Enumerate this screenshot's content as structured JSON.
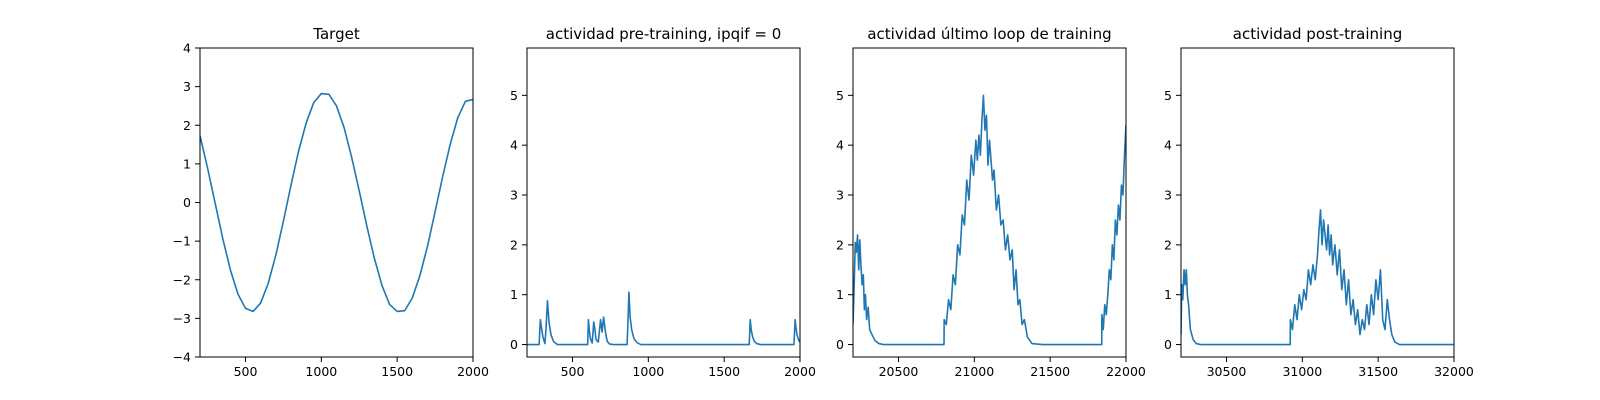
{
  "chart_data": [
    {
      "type": "line",
      "title": "Target",
      "xlim": [
        200,
        2000
      ],
      "ylim": [
        -4,
        4
      ],
      "xticks": [
        500,
        1000,
        1500,
        2000
      ],
      "xtick_labels": [
        "500",
        "1000",
        "1500",
        "2000"
      ],
      "yticks": [
        -4,
        -3,
        -2,
        -1,
        0,
        1,
        2,
        3,
        4
      ],
      "ytick_labels": [
        "−4",
        "−3",
        "−2",
        "−1",
        "0",
        "1",
        "2",
        "3",
        "4"
      ],
      "color": "#1f77b4",
      "series": [
        {
          "x": [
            200,
            250,
            300,
            350,
            400,
            450,
            500,
            550,
            600,
            650,
            700,
            750,
            800,
            850,
            900,
            950,
            1000,
            1050,
            1100,
            1150,
            1200,
            1250,
            1300,
            1350,
            1400,
            1450,
            1500,
            1550,
            1600,
            1650,
            1700,
            1750,
            1800,
            1850,
            1900,
            1950,
            2000
          ],
          "y": [
            1.73,
            0.89,
            -0.02,
            -0.93,
            -1.74,
            -2.37,
            -2.74,
            -2.82,
            -2.6,
            -2.09,
            -1.36,
            -0.48,
            0.45,
            1.33,
            2.06,
            2.59,
            2.82,
            2.8,
            2.5,
            1.94,
            1.17,
            0.3,
            -0.61,
            -1.45,
            -2.15,
            -2.64,
            -2.82,
            -2.8,
            -2.47,
            -1.89,
            -1.13,
            -0.24,
            0.67,
            1.51,
            2.2,
            2.62,
            2.67
          ]
        }
      ]
    },
    {
      "type": "line",
      "title": "actividad pre-training, ipqif = 0",
      "xlim": [
        200,
        2000
      ],
      "ylim": [
        -0.25,
        5.95
      ],
      "xticks": [
        500,
        1000,
        1500,
        2000
      ],
      "xtick_labels": [
        "500",
        "1000",
        "1500",
        "2000"
      ],
      "yticks": [
        0,
        1,
        2,
        3,
        4,
        5
      ],
      "ytick_labels": [
        "0",
        "1",
        "2",
        "3",
        "4",
        "5"
      ],
      "color": "#1f77b4",
      "series": [
        {
          "x": [
            200,
            280,
            288,
            295,
            305,
            318,
            325,
            335,
            345,
            358,
            375,
            400,
            600,
            605,
            610,
            618,
            630,
            640,
            648,
            655,
            670,
            685,
            695,
            705,
            715,
            723,
            730,
            745,
            770,
            860,
            866,
            872,
            880,
            890,
            905,
            925,
            950,
            1000,
            1665,
            1672,
            1678,
            1688,
            1700,
            1715,
            1740,
            1960,
            1968,
            1973,
            1980,
            1990,
            2000
          ],
          "y": [
            0,
            0,
            0.5,
            0.35,
            0.15,
            0.02,
            0.3,
            0.88,
            0.45,
            0.2,
            0.06,
            0,
            0,
            0.5,
            0.3,
            0.12,
            0.03,
            0.45,
            0.3,
            0.1,
            0.05,
            0.5,
            0.25,
            0.55,
            0.3,
            0.15,
            0.06,
            0.01,
            0,
            0,
            0.5,
            1.05,
            0.55,
            0.3,
            0.12,
            0.04,
            0,
            0,
            0,
            0.5,
            0.3,
            0.15,
            0.06,
            0.02,
            0,
            0,
            0.5,
            0.35,
            0.2,
            0.1,
            0.05
          ]
        }
      ]
    },
    {
      "type": "line",
      "title": "actividad último loop de training",
      "xlim": [
        20200,
        22000
      ],
      "ylim": [
        -0.25,
        5.95
      ],
      "xticks": [
        20500,
        21000,
        21500,
        22000
      ],
      "xtick_labels": [
        "20500",
        "21000",
        "21500",
        "22000"
      ],
      "yticks": [
        0,
        1,
        2,
        3,
        4,
        5
      ],
      "ytick_labels": [
        "0",
        "1",
        "2",
        "3",
        "4",
        "5"
      ],
      "color": "#1f77b4",
      "series": [
        {
          "x": [
            20200,
            20208,
            20215,
            20222,
            20230,
            20238,
            20245,
            20252,
            20260,
            20268,
            20275,
            20282,
            20290,
            20300,
            20310,
            20325,
            20345,
            20370,
            20400,
            20500,
            20700,
            20800,
            20801,
            20815,
            20830,
            20845,
            20860,
            20875,
            20890,
            20905,
            20920,
            20935,
            20950,
            20965,
            20980,
            20995,
            21010,
            21020,
            21030,
            21040,
            21050,
            21060,
            21070,
            21080,
            21090,
            21100,
            21110,
            21120,
            21130,
            21145,
            21160,
            21175,
            21190,
            21205,
            21220,
            21235,
            21250,
            21262,
            21275,
            21288,
            21300,
            21315,
            21330,
            21350,
            21380,
            21450,
            21840,
            21841,
            21850,
            21860,
            21870,
            21880,
            21890,
            21900,
            21910,
            21920,
            21930,
            21940,
            21950,
            21960,
            21970,
            21980,
            21990,
            22000
          ],
          "y": [
            0.4,
            1.2,
            2.05,
            1.85,
            2.2,
            1.5,
            2.1,
            1.6,
            1.2,
            1.4,
            0.7,
            1.0,
            0.5,
            0.75,
            0.3,
            0.2,
            0.08,
            0.02,
            0,
            0,
            0,
            0,
            0.5,
            0.4,
            0.9,
            0.7,
            1.4,
            1.2,
            2.0,
            1.8,
            2.6,
            2.4,
            3.3,
            2.9,
            3.8,
            3.4,
            4.1,
            3.7,
            4.2,
            3.8,
            4.5,
            5.0,
            4.3,
            4.6,
            3.6,
            4.1,
            3.7,
            3.3,
            3.5,
            2.7,
            3.0,
            2.4,
            2.5,
            1.9,
            2.2,
            1.7,
            1.9,
            1.1,
            1.5,
            0.8,
            0.9,
            0.4,
            0.5,
            0.15,
            0.02,
            0,
            0,
            0.6,
            0.3,
            0.8,
            0.6,
            1.0,
            1.5,
            1.3,
            2.0,
            1.7,
            2.5,
            2.2,
            2.8,
            2.5,
            3.2,
            3.0,
            3.8,
            4.4
          ]
        }
      ]
    },
    {
      "type": "line",
      "title": "actividad post-training",
      "xlim": [
        30200,
        32000
      ],
      "ylim": [
        -0.25,
        5.95
      ],
      "xticks": [
        30500,
        31000,
        31500,
        32000
      ],
      "xtick_labels": [
        "30500",
        "31000",
        "31500",
        "32000"
      ],
      "yticks": [
        0,
        1,
        2,
        3,
        4,
        5
      ],
      "ytick_labels": [
        "0",
        "1",
        "2",
        "3",
        "4",
        "5"
      ],
      "color": "#1f77b4",
      "series": [
        {
          "x": [
            30200,
            30205,
            30212,
            30220,
            30228,
            30235,
            30242,
            30250,
            30262,
            30280,
            30300,
            30330,
            30400,
            30500,
            30700,
            30900,
            30920,
            30921,
            30935,
            30950,
            30965,
            30980,
            30995,
            31010,
            31025,
            31040,
            31055,
            31070,
            31085,
            31100,
            31110,
            31120,
            31130,
            31140,
            31150,
            31160,
            31170,
            31180,
            31190,
            31200,
            31215,
            31230,
            31245,
            31260,
            31275,
            31290,
            31305,
            31320,
            31335,
            31350,
            31365,
            31380,
            31395,
            31410,
            31425,
            31440,
            31455,
            31470,
            31485,
            31500,
            31515,
            31530,
            31545,
            31560,
            31575,
            31590,
            31610,
            31640,
            31700,
            31800,
            32000
          ],
          "y": [
            0.2,
            1.2,
            0.9,
            1.5,
            1.2,
            1.5,
            1.0,
            0.8,
            0.3,
            0.1,
            0.02,
            0,
            0,
            0,
            0,
            0,
            0,
            0.5,
            0.3,
            0.8,
            0.5,
            1.0,
            0.7,
            1.1,
            0.9,
            1.5,
            1.2,
            1.6,
            1.3,
            1.8,
            2.3,
            2.7,
            2.0,
            2.5,
            2.2,
            1.9,
            2.4,
            1.8,
            2.2,
            1.6,
            2.0,
            1.4,
            1.9,
            1.1,
            1.5,
            0.8,
            1.3,
            0.6,
            0.9,
            0.4,
            0.7,
            0.2,
            0.5,
            0.3,
            0.8,
            0.4,
            1.0,
            0.6,
            1.3,
            0.9,
            1.5,
            0.5,
            0.3,
            0.9,
            0.5,
            0.2,
            0.05,
            0,
            0,
            0,
            0
          ]
        }
      ]
    }
  ]
}
